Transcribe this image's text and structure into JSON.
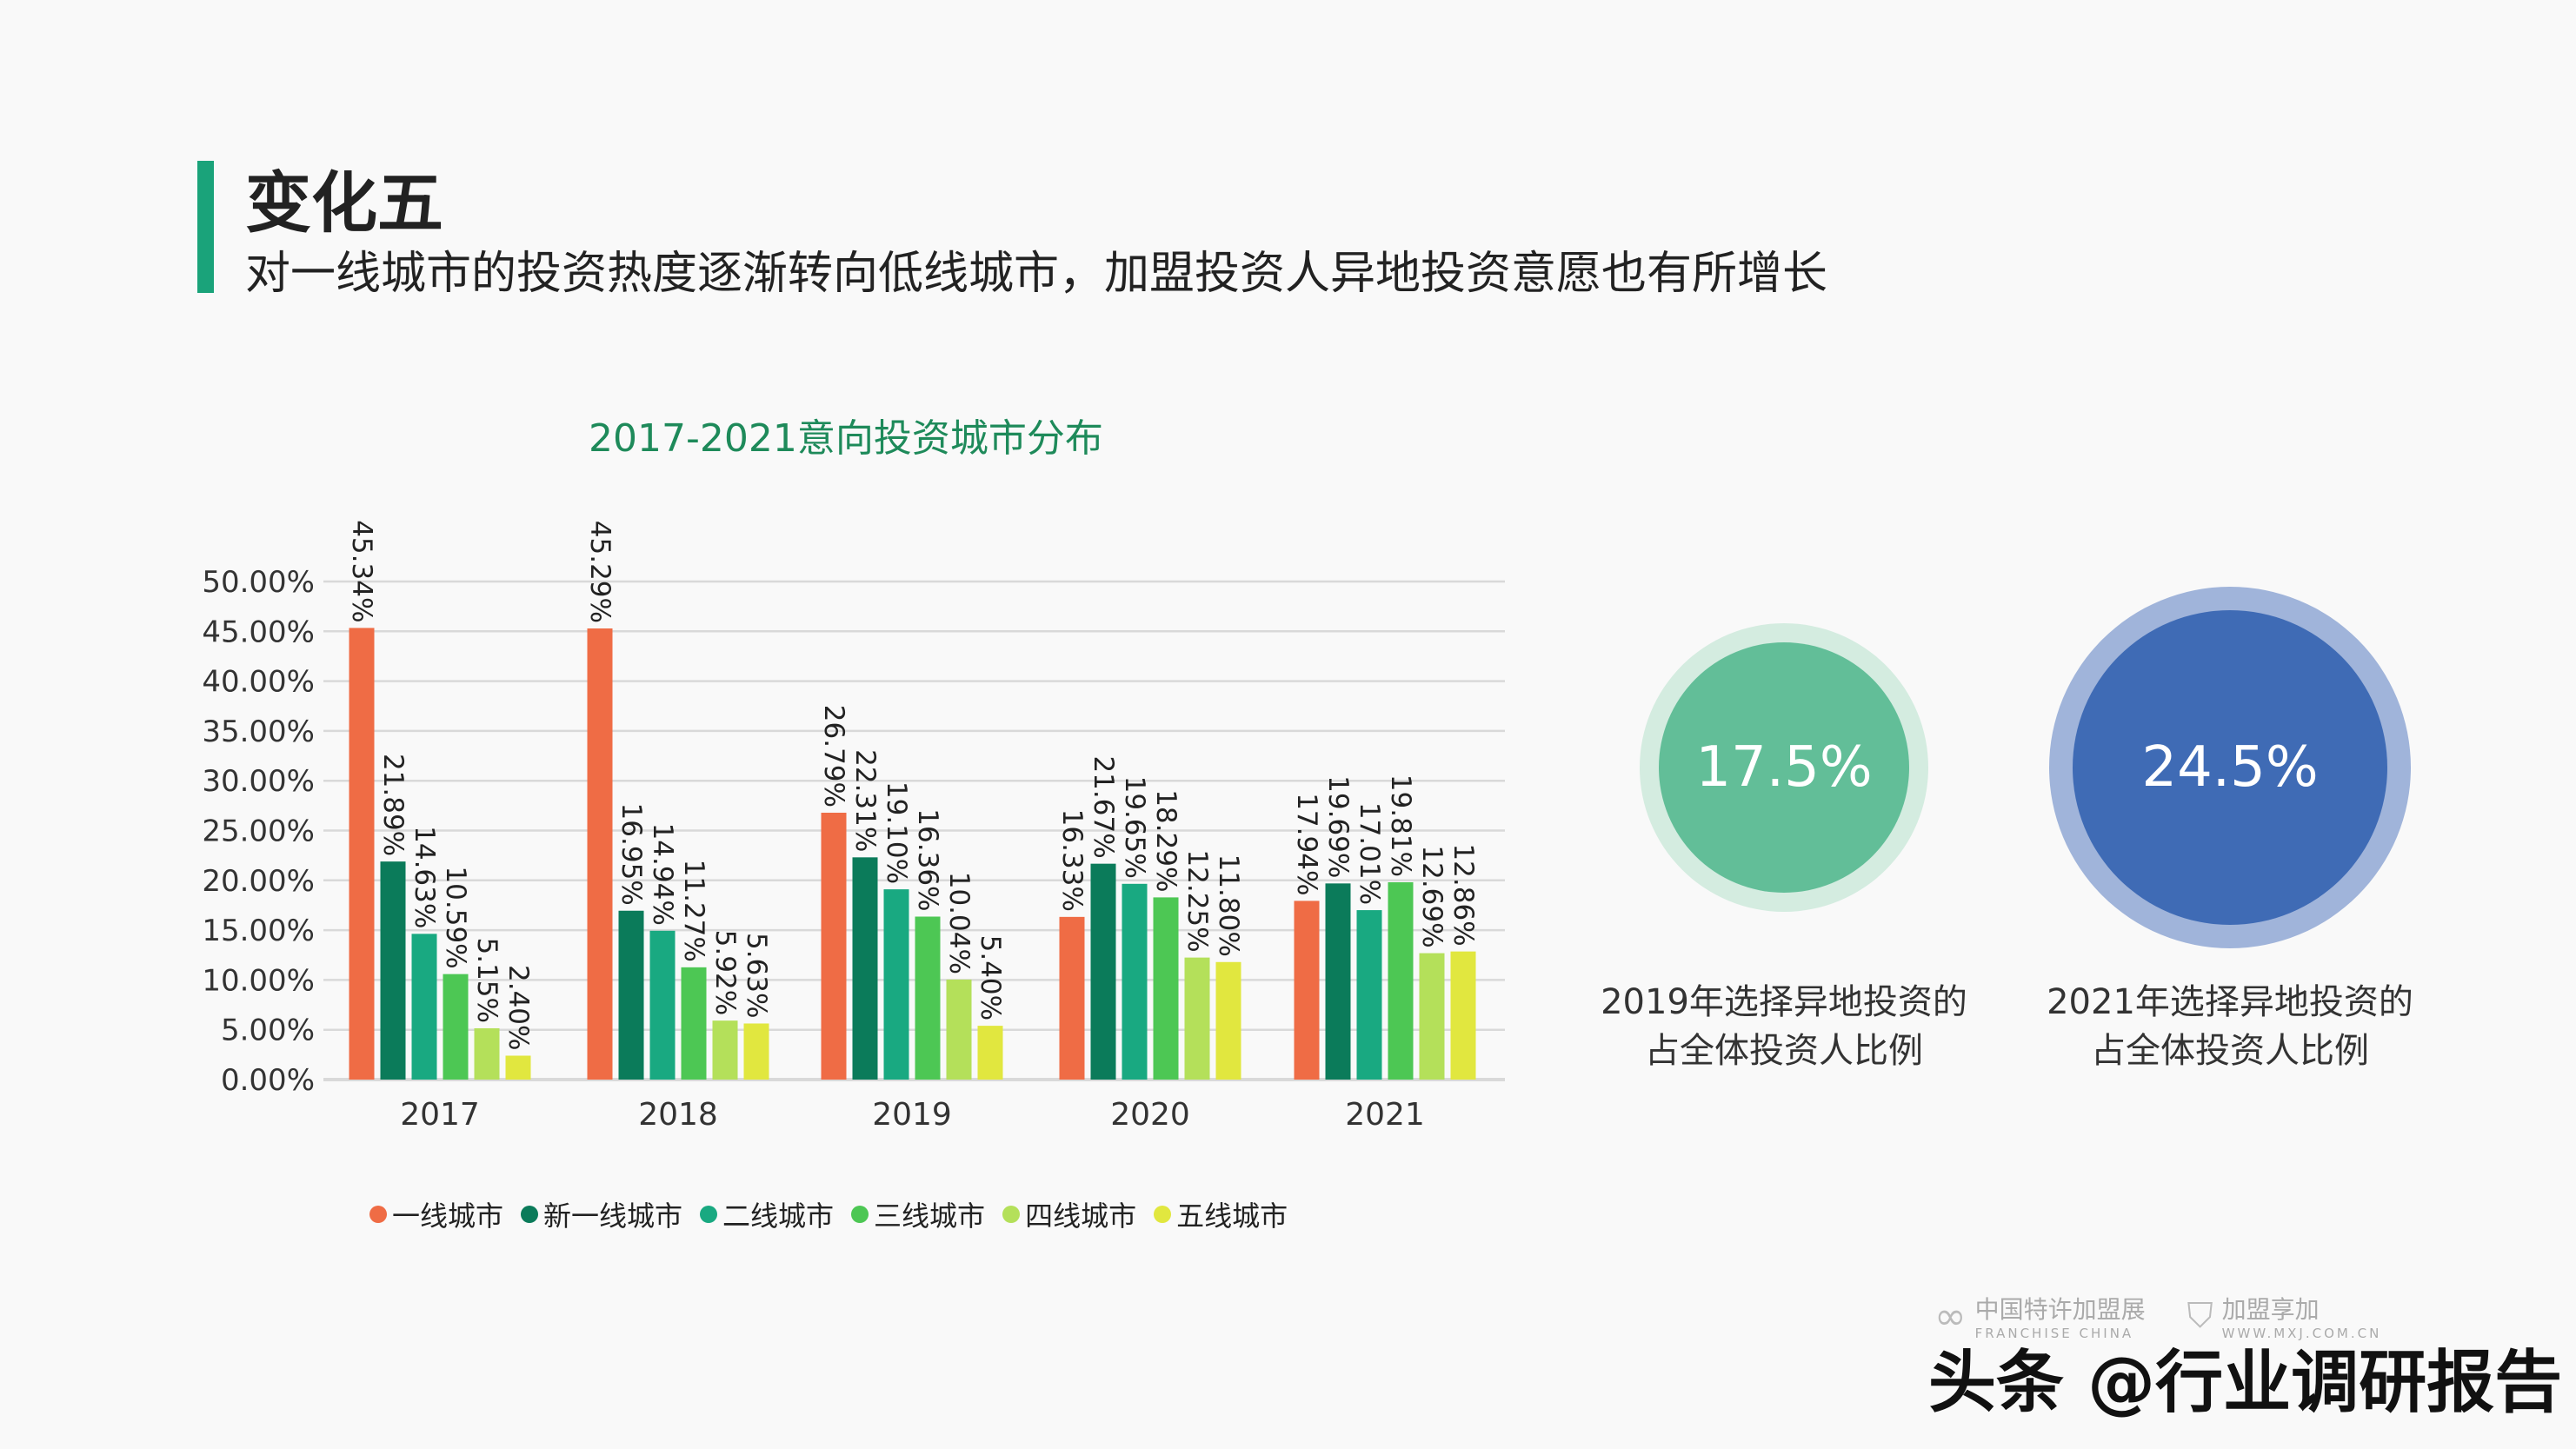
{
  "header": {
    "title": "变化五",
    "subtitle": "对一线城市的投资热度逐渐转向低线城市，加盟投资人异地投资意愿也有所增长"
  },
  "chart_data": {
    "type": "bar",
    "title": "2017-2021意向投资城市分布",
    "categories": [
      "2017",
      "2018",
      "2019",
      "2020",
      "2021"
    ],
    "ylim": [
      0,
      50
    ],
    "yticks": [
      "0.00%",
      "5.00%",
      "10.00%",
      "15.00%",
      "20.00%",
      "25.00%",
      "30.00%",
      "35.00%",
      "40.00%",
      "45.00%",
      "50.00%"
    ],
    "grid": true,
    "legend_position": "bottom",
    "series": [
      {
        "name": "一线城市",
        "color": "#ef6c45",
        "values": [
          45.34,
          45.29,
          26.79,
          16.33,
          17.94
        ],
        "labels": [
          "45.34%",
          "45.29%",
          "26.79%",
          "16.33%",
          "17.94%"
        ]
      },
      {
        "name": "新一线城市",
        "color": "#0b7b5a",
        "values": [
          21.89,
          16.95,
          22.31,
          21.67,
          19.69
        ],
        "labels": [
          "21.89%",
          "16.95%",
          "22.31%",
          "21.67%",
          "19.69%"
        ]
      },
      {
        "name": "二线城市",
        "color": "#19a981",
        "values": [
          14.63,
          14.94,
          19.1,
          19.65,
          17.01
        ],
        "labels": [
          "14.63%",
          "14.94%",
          "19.10%",
          "19.65%",
          "17.01%"
        ]
      },
      {
        "name": "三线城市",
        "color": "#4dc754",
        "values": [
          10.59,
          11.27,
          16.36,
          18.29,
          19.81
        ],
        "labels": [
          "10.59%",
          "11.27%",
          "16.36%",
          "18.29%",
          "19.81%"
        ]
      },
      {
        "name": "四线城市",
        "color": "#b4e05a",
        "values": [
          5.15,
          5.92,
          10.04,
          12.25,
          12.69
        ],
        "labels": [
          "5.15%",
          "5.92%",
          "10.04%",
          "12.25%",
          "12.69%"
        ]
      },
      {
        "name": "五线城市",
        "color": "#e1e73f",
        "values": [
          2.4,
          5.63,
          5.4,
          11.8,
          12.86
        ],
        "labels": [
          "2.40%",
          "5.63%",
          "5.40%",
          "11.80%",
          "12.86%"
        ]
      }
    ]
  },
  "stats": [
    {
      "value": "17.5%",
      "line1": "2019年选择异地投资的",
      "line2": "占全体投资人比例",
      "color": "#62be98",
      "ring_color": "#d4ece0"
    },
    {
      "value": "24.5%",
      "line1": "2021年选择异地投资的",
      "line2": "占全体投资人比例",
      "color": "#3f6bb5",
      "ring_color": "#a0b4da"
    }
  ],
  "watermark": {
    "logo1_name": "中国特许加盟展",
    "logo1_sub": "FRANCHISE CHINA",
    "logo2_name": "加盟享加",
    "logo2_sub": "WWW.MXJ.COM.CN",
    "handle": "头条 @行业调研报告"
  }
}
